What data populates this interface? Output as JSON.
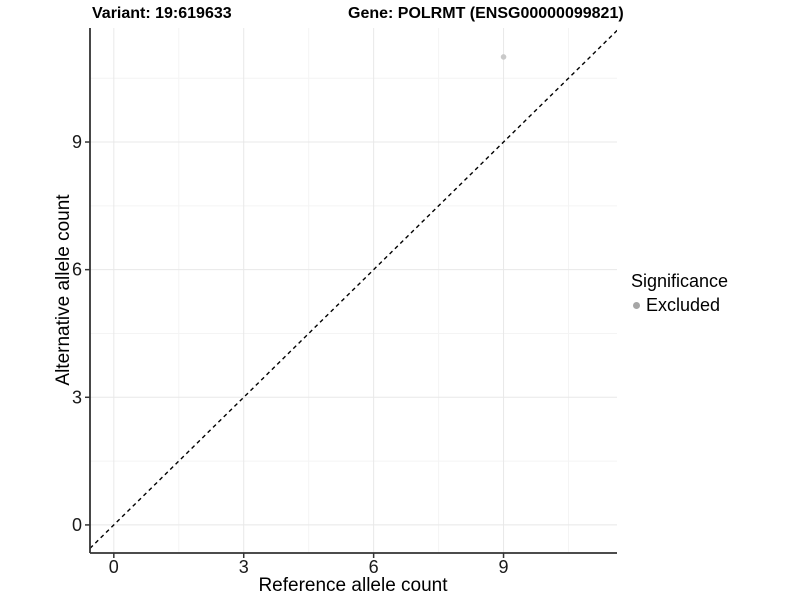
{
  "header": {
    "variant_title": "Variant: 19:619633",
    "gene_title": "Gene: POLRMT (ENSG00000099821)"
  },
  "axes": {
    "x_label": "Reference allele count",
    "y_label": "Alternative allele count"
  },
  "legend": {
    "title": "Significance",
    "entries": [
      {
        "label": "Excluded",
        "color": "#a6a6a6",
        "marker": "circle"
      }
    ]
  },
  "chart_data": {
    "type": "scatter",
    "title": "Variant: 19:619633   |   Gene: POLRMT (ENSG00000099821)",
    "xlabel": "Reference allele count",
    "ylabel": "Alternative allele count",
    "xlim": [
      -0.55,
      11.62
    ],
    "ylim": [
      -0.66,
      11.68
    ],
    "x_ticks": [
      0,
      3,
      6,
      9
    ],
    "y_ticks": [
      0,
      3,
      6,
      9
    ],
    "x_minor_gridlines": [
      1.5,
      4.5,
      7.5,
      10.5
    ],
    "y_minor_gridlines": [
      1.5,
      4.5,
      7.5,
      10.5
    ],
    "grid": true,
    "legend_position": "right",
    "series": [
      {
        "name": "Excluded",
        "marker": "circle",
        "color": "#c9c9c9",
        "points": [
          {
            "x": 9,
            "y": 11
          }
        ]
      }
    ],
    "reference_line": {
      "equation": "y = x",
      "slope": 1,
      "intercept": 0,
      "style": "dashed",
      "color": "#000000"
    }
  },
  "colors": {
    "background": "#ffffff",
    "grid_major": "#e8e8e8",
    "grid_minor": "#f4f4f4",
    "axis_line": "#333333",
    "tick_mark": "#333333",
    "tick_text": "#1a1a1a",
    "point": "#c9c9c9",
    "legend_dot": "#a6a6a6",
    "reference_line": "#000000"
  }
}
